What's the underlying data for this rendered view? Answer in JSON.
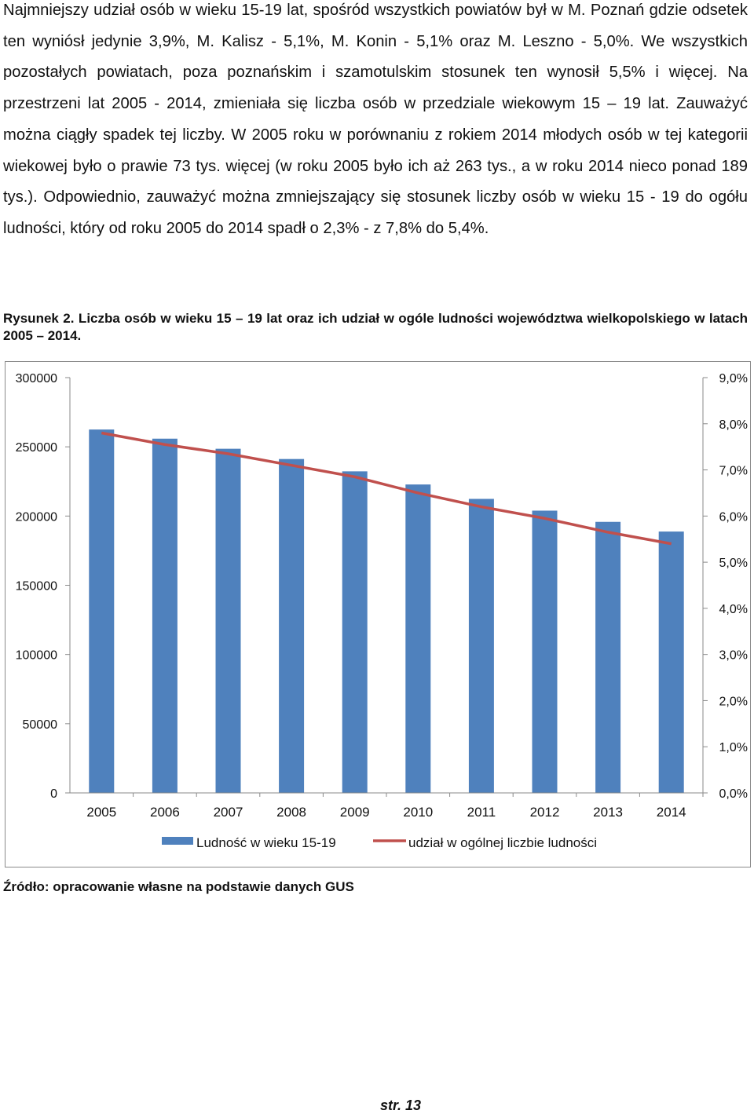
{
  "paragraph": "Najmniejszy udział osób w wieku 15-19 lat, spośród wszystkich powiatów był w M. Poznań gdzie odsetek ten wyniósł jedynie 3,9%, M. Kalisz - 5,1%, M. Konin - 5,1% oraz M. Leszno - 5,0%. We wszystkich pozostałych powiatach, poza poznańskim i szamotulskim stosunek ten wynosił 5,5% i więcej. Na przestrzeni lat 2005 - 2014, zmieniała się liczba osób w przedziale wiekowym 15 – 19 lat. Zauważyć można ciągły spadek tej liczby. W 2005 roku w porównaniu z rokiem 2014 młodych osób w tej kategorii wiekowej było o prawie 73 tys. więcej (w roku 2005 było ich aż 263 tys., a w roku 2014 nieco ponad 189 tys.). Odpowiednio, zauważyć można zmniejszający się stosunek liczby osób w wieku 15 - 19 do ogółu ludności, który od roku 2005 do 2014 spadł o 2,3% - z 7,8% do 5,4%.",
  "caption": "Rysunek 2. Liczba osób w wieku 15 – 19 lat oraz ich udział w ogóle ludności województwa wielkopolskiego w latach 2005 – 2014.",
  "source": "Źródło: opracowanie własne na podstawie danych GUS",
  "page_number": "str. 13",
  "chart_data": {
    "type": "bar",
    "categories": [
      "2005",
      "2006",
      "2007",
      "2008",
      "2009",
      "2010",
      "2011",
      "2012",
      "2013",
      "2014"
    ],
    "series": [
      {
        "name": "Ludność w wieku 15-19",
        "kind": "bar",
        "axis": "left",
        "color": "#4f81bd",
        "values": [
          262500,
          255900,
          248600,
          241200,
          232300,
          222800,
          212400,
          203900,
          195800,
          188800
        ]
      },
      {
        "name": "udział w ogólnej liczbie ludności",
        "kind": "line",
        "axis": "right",
        "color": "#c0504d",
        "values": [
          7.8,
          7.55,
          7.35,
          7.1,
          6.85,
          6.5,
          6.2,
          5.95,
          5.65,
          5.4
        ]
      }
    ],
    "ylim_left": [
      0,
      300000
    ],
    "yticks_left": [
      "0",
      "50000",
      "100000",
      "150000",
      "200000",
      "250000",
      "300000"
    ],
    "ylim_right": [
      0,
      9
    ],
    "yticks_right": [
      "0,0%",
      "1,0%",
      "2,0%",
      "3,0%",
      "4,0%",
      "5,0%",
      "6,0%",
      "7,0%",
      "8,0%",
      "9,0%"
    ],
    "grid": false,
    "legend": "bottom"
  }
}
